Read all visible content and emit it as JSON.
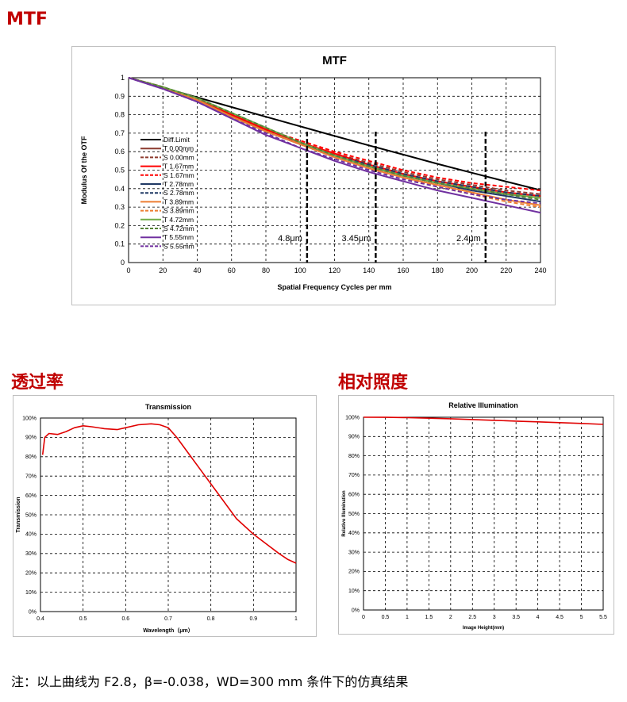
{
  "sections": {
    "mtf": "MTF",
    "transmission": "透过率",
    "illumination": "相对照度"
  },
  "note": "注：以上曲线为 F2.8，β=-0.038，WD=300 mm 条件下的仿真结果",
  "chart_data": [
    {
      "type": "line",
      "title": "MTF",
      "xlabel": "Spatial Frequency Cycles per mm",
      "ylabel": "Modulus Of  the OTF",
      "xlim": [
        0,
        240
      ],
      "ylim": [
        0,
        1
      ],
      "xticks": [
        "0",
        "20",
        "40",
        "60",
        "80",
        "100",
        "120",
        "140",
        "160",
        "180",
        "200",
        "220",
        "240"
      ],
      "yticks": [
        "0",
        "0.1",
        "0.2",
        "0.3",
        "0.4",
        "0.5",
        "0.6",
        "0.7",
        "0.8",
        "0.9",
        "1"
      ],
      "grid": "dashed",
      "legend_position": "left",
      "annotations": [
        {
          "text": "4.8μm",
          "x": 104
        },
        {
          "text": "3.45μm",
          "x": 144
        },
        {
          "text": "2.4μm",
          "x": 208
        }
      ],
      "x": [
        0,
        20,
        40,
        60,
        80,
        100,
        120,
        140,
        160,
        180,
        200,
        220,
        240
      ],
      "series": [
        {
          "name": "Diff.Limit",
          "color": "#000000",
          "dash": false,
          "values": [
            1,
            0.947,
            0.894,
            0.841,
            0.789,
            0.737,
            0.685,
            0.634,
            0.584,
            0.534,
            0.486,
            0.438,
            0.392
          ]
        },
        {
          "name": "T 0.00mm",
          "color": "#8c3a2e",
          "dash": false,
          "values": [
            1,
            0.95,
            0.88,
            0.8,
            0.72,
            0.65,
            0.58,
            0.52,
            0.47,
            0.43,
            0.4,
            0.37,
            0.35
          ]
        },
        {
          "name": "S 0.00mm",
          "color": "#8c3a2e",
          "dash": true,
          "values": [
            1,
            0.95,
            0.88,
            0.8,
            0.72,
            0.65,
            0.59,
            0.54,
            0.49,
            0.45,
            0.42,
            0.39,
            0.37
          ]
        },
        {
          "name": "T 1.67mm",
          "color": "#ff0000",
          "dash": false,
          "values": [
            1,
            0.95,
            0.88,
            0.8,
            0.72,
            0.65,
            0.59,
            0.53,
            0.48,
            0.44,
            0.41,
            0.38,
            0.36
          ]
        },
        {
          "name": "S 1.67mm",
          "color": "#ff0000",
          "dash": true,
          "values": [
            1,
            0.95,
            0.88,
            0.8,
            0.72,
            0.66,
            0.6,
            0.55,
            0.5,
            0.46,
            0.43,
            0.41,
            0.39
          ]
        },
        {
          "name": "T 2.78mm",
          "color": "#1f3864",
          "dash": false,
          "values": [
            1,
            0.95,
            0.88,
            0.79,
            0.71,
            0.64,
            0.58,
            0.52,
            0.47,
            0.43,
            0.39,
            0.36,
            0.33
          ]
        },
        {
          "name": "S 2.78mm",
          "color": "#1f3864",
          "dash": true,
          "values": [
            1,
            0.95,
            0.88,
            0.79,
            0.71,
            0.64,
            0.58,
            0.53,
            0.48,
            0.44,
            0.41,
            0.38,
            0.36
          ]
        },
        {
          "name": "T 3.89mm",
          "color": "#ed7d31",
          "dash": false,
          "values": [
            1,
            0.95,
            0.88,
            0.79,
            0.71,
            0.64,
            0.57,
            0.51,
            0.46,
            0.42,
            0.38,
            0.34,
            0.31
          ]
        },
        {
          "name": "S 3.89mm",
          "color": "#ed7d31",
          "dash": true,
          "values": [
            1,
            0.95,
            0.88,
            0.79,
            0.71,
            0.64,
            0.57,
            0.51,
            0.46,
            0.41,
            0.37,
            0.33,
            0.3
          ]
        },
        {
          "name": "T 4.72mm",
          "color": "#70ad47",
          "dash": false,
          "values": [
            1,
            0.95,
            0.89,
            0.81,
            0.73,
            0.65,
            0.58,
            0.52,
            0.47,
            0.43,
            0.4,
            0.37,
            0.35
          ]
        },
        {
          "name": "S 4.72mm",
          "color": "#548235",
          "dash": true,
          "values": [
            1,
            0.95,
            0.89,
            0.81,
            0.73,
            0.65,
            0.58,
            0.52,
            0.47,
            0.43,
            0.4,
            0.37,
            0.34
          ]
        },
        {
          "name": "T 5.55mm",
          "color": "#7030a0",
          "dash": false,
          "values": [
            1,
            0.94,
            0.87,
            0.78,
            0.69,
            0.62,
            0.55,
            0.49,
            0.44,
            0.39,
            0.35,
            0.31,
            0.27
          ]
        },
        {
          "name": "S 5.55mm",
          "color": "#7030a0",
          "dash": true,
          "values": [
            1,
            0.94,
            0.87,
            0.78,
            0.7,
            0.62,
            0.56,
            0.5,
            0.45,
            0.41,
            0.37,
            0.34,
            0.32
          ]
        }
      ]
    },
    {
      "type": "line",
      "title": "Transmission",
      "xlabel": "Wavelength（μm）",
      "ylabel": "Transmission",
      "xlim": [
        0.4,
        1.0
      ],
      "ylim": [
        0,
        100
      ],
      "xticks": [
        "0.4",
        "0.5",
        "0.6",
        "0.7",
        "0.8",
        "0.9",
        "1"
      ],
      "yticks": [
        "0%",
        "10%",
        "20%",
        "30%",
        "40%",
        "50%",
        "60%",
        "70%",
        "80%",
        "90%",
        "100%"
      ],
      "grid": "dashed",
      "x": [
        0.405,
        0.41,
        0.42,
        0.44,
        0.46,
        0.48,
        0.5,
        0.52,
        0.55,
        0.58,
        0.6,
        0.63,
        0.66,
        0.68,
        0.7,
        0.72,
        0.75,
        0.78,
        0.8,
        0.83,
        0.86,
        0.9,
        0.93,
        0.96,
        0.98,
        1.0
      ],
      "series": [
        {
          "name": "",
          "color": "#e00000",
          "values": [
            81,
            90,
            92,
            91.5,
            93,
            95,
            96,
            95.5,
            94.5,
            94,
            95,
            96.5,
            97,
            96.5,
            95,
            90,
            81,
            72,
            66,
            57,
            48,
            40,
            35,
            30,
            27,
            25
          ]
        }
      ]
    },
    {
      "type": "line",
      "title": "Relative Illumination",
      "xlabel": "Image Height(mm)",
      "ylabel": "Relative Illumination",
      "xlim": [
        0,
        5.5
      ],
      "ylim": [
        0,
        100
      ],
      "xticks": [
        "0",
        "0.5",
        "1",
        "1.5",
        "2",
        "2.5",
        "3",
        "3.5",
        "4",
        "4.5",
        "5",
        "5.5"
      ],
      "yticks": [
        "0%",
        "10%",
        "20%",
        "30%",
        "40%",
        "50%",
        "60%",
        "70%",
        "80%",
        "90%",
        "100%"
      ],
      "grid": "dashed",
      "x": [
        0,
        0.5,
        1,
        1.5,
        2,
        2.5,
        3,
        3.5,
        4,
        4.5,
        5,
        5.5
      ],
      "series": [
        {
          "name": "",
          "color": "#e00000",
          "values": [
            100,
            99.95,
            99.8,
            99.5,
            99.2,
            98.8,
            98.4,
            98.0,
            97.6,
            97.2,
            96.8,
            96.3
          ]
        }
      ]
    }
  ]
}
